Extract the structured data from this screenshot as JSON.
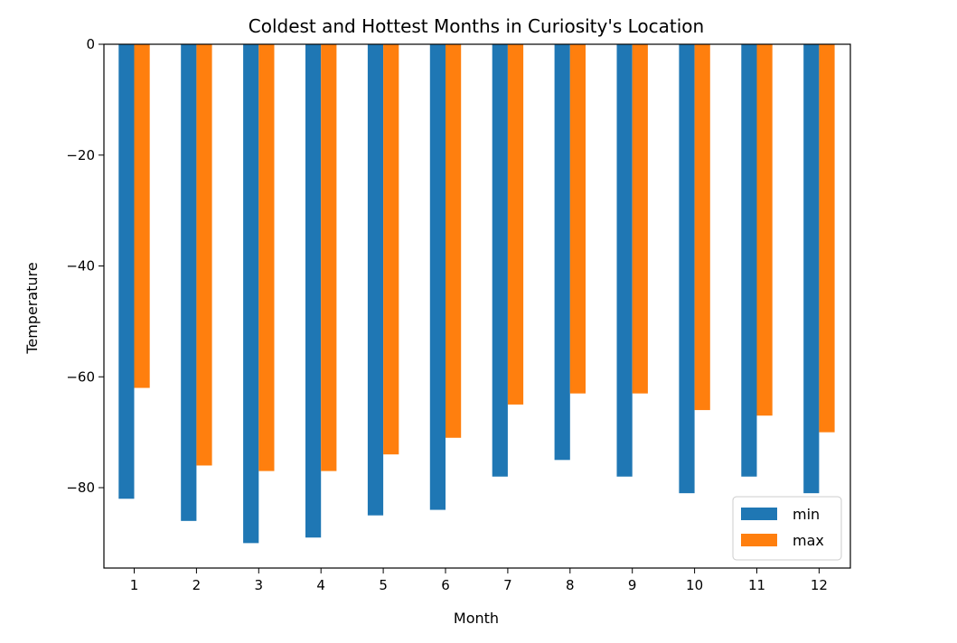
{
  "chart_data": {
    "type": "bar",
    "title": "Coldest and Hottest Months in Curiosity's Location",
    "xlabel": "Month",
    "ylabel": "Temperature",
    "categories": [
      "1",
      "2",
      "3",
      "4",
      "5",
      "6",
      "7",
      "8",
      "9",
      "10",
      "11",
      "12"
    ],
    "series": [
      {
        "name": "min",
        "color": "#1f77b4",
        "values": [
          -82,
          -86,
          -90,
          -89,
          -85,
          -84,
          -78,
          -75,
          -78,
          -81,
          -78,
          -81
        ]
      },
      {
        "name": "max",
        "color": "#ff7f0e",
        "values": [
          -62,
          -76,
          -77,
          -77,
          -74,
          -71,
          -65,
          -63,
          -63,
          -66,
          -67,
          -70
        ]
      }
    ],
    "ylim": [
      -94.5,
      0
    ],
    "yticks": [
      0,
      -20,
      -40,
      -60,
      -80
    ],
    "ytick_labels": [
      "0",
      "−20",
      "−40",
      "−60",
      "−80"
    ],
    "grid": false,
    "legend_position": "lower right"
  }
}
